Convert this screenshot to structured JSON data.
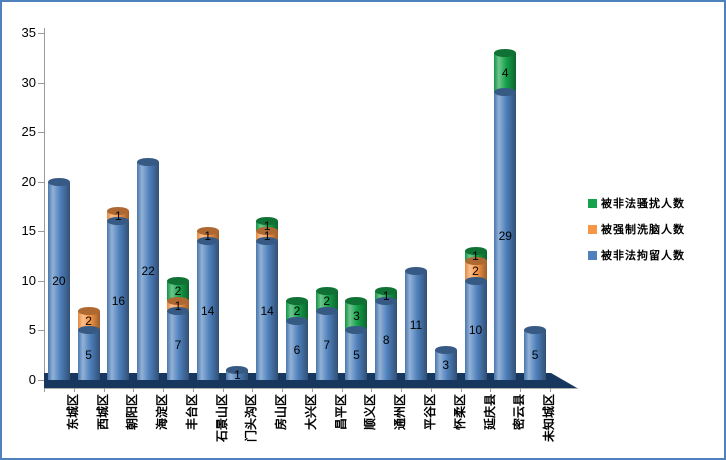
{
  "chart_data": {
    "type": "bar",
    "subtype": "stacked-3d-cylinder",
    "title": "",
    "categories": [
      "东城区",
      "西城区",
      "朝阳区",
      "海淀区",
      "丰台区",
      "石景山区",
      "门头沟区",
      "房山区",
      "大兴区",
      "昌平区",
      "顺义区",
      "通州区",
      "平谷区",
      "怀柔区",
      "延庆县",
      "密云县",
      "未知城区"
    ],
    "series": [
      {
        "name": "被非法拘留人数",
        "color": "#4F81BD",
        "values": [
          20,
          5,
          16,
          22,
          7,
          14,
          1,
          14,
          6,
          7,
          5,
          8,
          11,
          3,
          10,
          29,
          5
        ]
      },
      {
        "name": "被强制洗脑人数",
        "color": "#F79646",
        "values": [
          0,
          2,
          1,
          0,
          1,
          1,
          0,
          1,
          0,
          0,
          0,
          0,
          0,
          0,
          2,
          0,
          0
        ]
      },
      {
        "name": "被非法骚扰人数",
        "color": "#15A24A",
        "values": [
          0,
          0,
          0,
          0,
          2,
          0,
          0,
          1,
          2,
          2,
          3,
          1,
          0,
          0,
          1,
          4,
          0
        ]
      }
    ],
    "legend": {
      "position": "right",
      "entries": [
        {
          "label": "被非法骚扰人数",
          "color": "#15A24A"
        },
        {
          "label": "被强制洗脑人数",
          "color": "#F79646"
        },
        {
          "label": "被非法拘留人数",
          "color": "#4F81BD"
        }
      ]
    },
    "y_axis": {
      "min": 0,
      "max": 35,
      "step": 5,
      "ticks": [
        0,
        5,
        10,
        15,
        20,
        25,
        30,
        35
      ]
    },
    "x_axis": {
      "label": ""
    },
    "grid": false,
    "data_labels": "inside-center, only non-zero values"
  },
  "colors": {
    "outer_border": "#4F81BD",
    "floor": "#17375E",
    "axis": "#9A9A9A",
    "text": "#000000",
    "background": "#FFFFFF"
  }
}
